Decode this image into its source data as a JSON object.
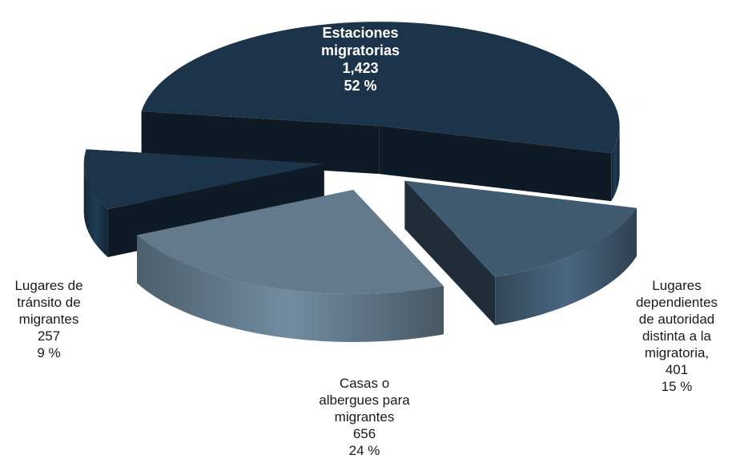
{
  "chart_data": {
    "type": "pie",
    "style": "3d-exploded",
    "title": "",
    "slices": [
      {
        "key": "estaciones",
        "label_lines": [
          "Estaciones",
          "migratorias"
        ],
        "value_text": "1,423",
        "percent_text": "52 %",
        "value": 1423,
        "percent": 52,
        "color": "#1c3449"
      },
      {
        "key": "dependientes",
        "label_lines": [
          "Lugares",
          "dependientes",
          "de autoridad",
          "distinta a la",
          "migratoria,"
        ],
        "value_text": "401",
        "percent_text": "15 %",
        "value": 401,
        "percent": 15,
        "color": "#405a70"
      },
      {
        "key": "casas",
        "label_lines": [
          "Casas o",
          "albergues para",
          "migrantes"
        ],
        "value_text": "656",
        "percent_text": "24 %",
        "value": 656,
        "percent": 24,
        "color": "#627a8c"
      },
      {
        "key": "transito",
        "label_lines": [
          "Lugares de",
          "tránsito de",
          "migrantes"
        ],
        "value_text": "257",
        "percent_text": "9 %",
        "value": 257,
        "percent": 9,
        "color": "#1c3449"
      }
    ]
  }
}
